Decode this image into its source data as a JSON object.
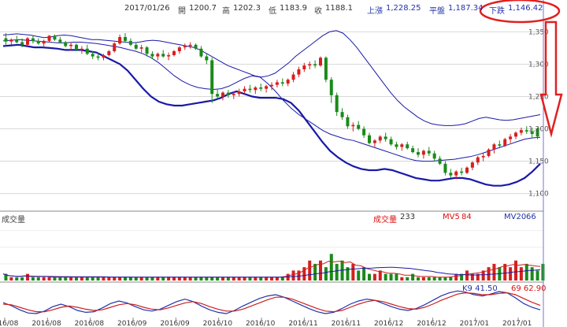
{
  "header": {
    "date": "2017/01/26",
    "open_label": "開",
    "open_value": "1200.7",
    "high_label": "高",
    "high_value": "1202.3",
    "low_label": "低",
    "low_value": "1183.9",
    "close_label": "收",
    "close_value": "1188.1",
    "upper_label": "上漲",
    "upper_value": "1,228.25",
    "mid_label": "平盤",
    "mid_value": "1,187.34",
    "lower_label": "下跌",
    "lower_value": "1,146.42"
  },
  "volume_header": {
    "panel_label": "成交量",
    "volume_label": "成交量",
    "volume_value": "233",
    "mv5_label": "MV5",
    "mv5_value": "84",
    "mv20_label": "MV20",
    "mv20_value": "66"
  },
  "kd_labels": {
    "k": "K9 41.50",
    "d": "69 62.90"
  },
  "colors": {
    "up": "#d42020",
    "down": "#1a8a1a",
    "band": "#1a1aa8",
    "mv5": "#cc2020",
    "mv20": "#1a1aa8",
    "grid": "#d8d8d8",
    "annotation": "#e02020"
  },
  "chart_data": {
    "type": "candlestick",
    "y_ticks": [
      "1,350",
      "1,300",
      "1,250",
      "1,200",
      "1,150",
      "1,100"
    ],
    "ylim": [
      1080,
      1370
    ],
    "x_ticks": [
      "2016/08",
      "2016/08",
      "2016/08",
      "2016/09",
      "2016/09",
      "2016/10",
      "2016/10",
      "2016/11",
      "2016/11",
      "2016/12",
      "2016/12",
      "2017/01",
      "2017/01"
    ],
    "candles": [
      [
        1340,
        1348,
        1328,
        1335
      ],
      [
        1335,
        1340,
        1330,
        1338
      ],
      [
        1338,
        1344,
        1332,
        1334
      ],
      [
        1334,
        1340,
        1326,
        1330
      ],
      [
        1330,
        1342,
        1328,
        1340
      ],
      [
        1340,
        1344,
        1332,
        1336
      ],
      [
        1336,
        1340,
        1330,
        1332
      ],
      [
        1332,
        1338,
        1326,
        1336
      ],
      [
        1336,
        1345,
        1334,
        1344
      ],
      [
        1344,
        1346,
        1336,
        1338
      ],
      [
        1338,
        1342,
        1332,
        1334
      ],
      [
        1334,
        1336,
        1326,
        1328
      ],
      [
        1328,
        1334,
        1322,
        1330
      ],
      [
        1330,
        1332,
        1320,
        1322
      ],
      [
        1322,
        1328,
        1316,
        1324
      ],
      [
        1324,
        1330,
        1314,
        1316
      ],
      [
        1316,
        1320,
        1308,
        1312
      ],
      [
        1312,
        1318,
        1306,
        1310
      ],
      [
        1310,
        1316,
        1306,
        1314
      ],
      [
        1314,
        1322,
        1312,
        1320
      ],
      [
        1320,
        1334,
        1318,
        1332
      ],
      [
        1332,
        1346,
        1330,
        1342
      ],
      [
        1342,
        1348,
        1334,
        1336
      ],
      [
        1336,
        1340,
        1328,
        1330
      ],
      [
        1330,
        1334,
        1322,
        1324
      ],
      [
        1324,
        1330,
        1318,
        1326
      ],
      [
        1326,
        1328,
        1312,
        1316
      ],
      [
        1316,
        1320,
        1308,
        1312
      ],
      [
        1312,
        1318,
        1306,
        1316
      ],
      [
        1316,
        1322,
        1310,
        1312
      ],
      [
        1312,
        1318,
        1306,
        1314
      ],
      [
        1314,
        1322,
        1312,
        1320
      ],
      [
        1320,
        1328,
        1316,
        1326
      ],
      [
        1326,
        1332,
        1322,
        1328
      ],
      [
        1328,
        1334,
        1324,
        1330
      ],
      [
        1330,
        1332,
        1322,
        1324
      ],
      [
        1324,
        1328,
        1310,
        1312
      ],
      [
        1312,
        1316,
        1300,
        1306
      ],
      [
        1306,
        1310,
        1240,
        1254
      ],
      [
        1254,
        1262,
        1246,
        1250
      ],
      [
        1250,
        1258,
        1244,
        1256
      ],
      [
        1256,
        1260,
        1248,
        1252
      ],
      [
        1252,
        1258,
        1246,
        1254
      ],
      [
        1254,
        1262,
        1250,
        1258
      ],
      [
        1258,
        1266,
        1254,
        1262
      ],
      [
        1262,
        1268,
        1256,
        1260
      ],
      [
        1260,
        1266,
        1254,
        1264
      ],
      [
        1264,
        1270,
        1258,
        1262
      ],
      [
        1262,
        1268,
        1256,
        1266
      ],
      [
        1266,
        1272,
        1260,
        1268
      ],
      [
        1268,
        1276,
        1264,
        1272
      ],
      [
        1272,
        1278,
        1266,
        1270
      ],
      [
        1270,
        1278,
        1266,
        1276
      ],
      [
        1276,
        1288,
        1272,
        1284
      ],
      [
        1284,
        1296,
        1280,
        1292
      ],
      [
        1292,
        1302,
        1288,
        1298
      ],
      [
        1298,
        1304,
        1292,
        1300
      ],
      [
        1300,
        1306,
        1294,
        1298
      ],
      [
        1298,
        1312,
        1296,
        1310
      ],
      [
        1310,
        1312,
        1272,
        1276
      ],
      [
        1276,
        1280,
        1240,
        1252
      ],
      [
        1252,
        1256,
        1220,
        1226
      ],
      [
        1226,
        1232,
        1214,
        1218
      ],
      [
        1218,
        1222,
        1200,
        1204
      ],
      [
        1204,
        1210,
        1196,
        1206
      ],
      [
        1206,
        1212,
        1198,
        1200
      ],
      [
        1200,
        1204,
        1186,
        1190
      ],
      [
        1190,
        1194,
        1176,
        1178
      ],
      [
        1178,
        1184,
        1172,
        1182
      ],
      [
        1182,
        1190,
        1178,
        1188
      ],
      [
        1188,
        1194,
        1180,
        1184
      ],
      [
        1184,
        1188,
        1174,
        1176
      ],
      [
        1176,
        1180,
        1168,
        1172
      ],
      [
        1172,
        1178,
        1166,
        1176
      ],
      [
        1176,
        1180,
        1168,
        1170
      ],
      [
        1170,
        1174,
        1162,
        1164
      ],
      [
        1164,
        1170,
        1156,
        1160
      ],
      [
        1160,
        1168,
        1154,
        1166
      ],
      [
        1166,
        1172,
        1158,
        1162
      ],
      [
        1162,
        1166,
        1150,
        1154
      ],
      [
        1154,
        1158,
        1144,
        1146
      ],
      [
        1146,
        1150,
        1128,
        1132
      ],
      [
        1132,
        1138,
        1124,
        1128
      ],
      [
        1128,
        1136,
        1122,
        1134
      ],
      [
        1134,
        1140,
        1128,
        1132
      ],
      [
        1132,
        1142,
        1130,
        1140
      ],
      [
        1140,
        1150,
        1136,
        1148
      ],
      [
        1148,
        1158,
        1144,
        1156
      ],
      [
        1156,
        1162,
        1150,
        1158
      ],
      [
        1158,
        1170,
        1156,
        1168
      ],
      [
        1168,
        1178,
        1162,
        1176
      ],
      [
        1176,
        1182,
        1170,
        1174
      ],
      [
        1174,
        1186,
        1172,
        1184
      ],
      [
        1184,
        1192,
        1178,
        1188
      ],
      [
        1188,
        1196,
        1184,
        1194
      ],
      [
        1194,
        1202,
        1190,
        1198
      ],
      [
        1198,
        1204,
        1192,
        1196
      ],
      [
        1196,
        1202,
        1186,
        1192
      ],
      [
        1200.7,
        1202.3,
        1183.9,
        1188.1
      ]
    ],
    "upper_band": [
      1345,
      1346,
      1347,
      1346,
      1345,
      1343,
      1341,
      1342,
      1344,
      1345,
      1344,
      1342,
      1340,
      1338,
      1338,
      1337,
      1336,
      1335,
      1334,
      1333,
      1334,
      1336,
      1337,
      1336,
      1334,
      1332,
      1330,
      1328,
      1326,
      1322,
      1316,
      1310,
      1304,
      1298,
      1294,
      1290,
      1286,
      1282,
      1280,
      1282,
      1286,
      1294,
      1302,
      1312,
      1320,
      1328,
      1336,
      1344,
      1350,
      1352,
      1348,
      1338,
      1326,
      1312,
      1298,
      1284,
      1270,
      1256,
      1244,
      1234,
      1226,
      1218,
      1212,
      1208,
      1206,
      1205,
      1205,
      1206,
      1208,
      1212,
      1216,
      1218,
      1216,
      1214,
      1213,
      1214,
      1216,
      1218,
      1220,
      1222
    ],
    "mid_band": [
      1336,
      1337,
      1338,
      1337,
      1336,
      1335,
      1334,
      1333,
      1333,
      1334,
      1334,
      1333,
      1332,
      1330,
      1328,
      1326,
      1323,
      1320,
      1316,
      1310,
      1302,
      1292,
      1282,
      1274,
      1268,
      1264,
      1262,
      1261,
      1262,
      1266,
      1272,
      1278,
      1282,
      1280,
      1270,
      1258,
      1244,
      1232,
      1222,
      1214,
      1206,
      1198,
      1192,
      1188,
      1184,
      1182,
      1178,
      1174,
      1170,
      1166,
      1162,
      1158,
      1154,
      1151,
      1150,
      1150,
      1151,
      1152,
      1153,
      1155,
      1157,
      1160,
      1164,
      1168,
      1172,
      1176,
      1180,
      1184,
      1186,
      1187
    ],
    "lower_band": [
      1328,
      1329,
      1330,
      1328,
      1326,
      1326,
      1325,
      1324,
      1322,
      1322,
      1322,
      1320,
      1318,
      1312,
      1306,
      1300,
      1290,
      1276,
      1262,
      1250,
      1242,
      1238,
      1236,
      1236,
      1238,
      1240,
      1242,
      1244,
      1248,
      1254,
      1258,
      1254,
      1250,
      1248,
      1248,
      1248,
      1246,
      1240,
      1228,
      1212,
      1196,
      1180,
      1166,
      1156,
      1148,
      1142,
      1138,
      1136,
      1136,
      1138,
      1136,
      1132,
      1128,
      1124,
      1122,
      1120,
      1120,
      1122,
      1124,
      1124,
      1122,
      1118,
      1114,
      1112,
      1112,
      1114,
      1118,
      1124,
      1134,
      1146
    ],
    "volume": [
      2,
      1,
      1,
      1,
      2,
      1,
      1,
      1,
      1,
      1,
      1,
      1,
      1,
      1,
      1,
      1,
      1,
      1,
      1,
      1,
      1,
      1,
      1,
      1,
      1,
      1,
      1,
      1,
      1,
      1,
      1,
      1,
      1,
      1,
      1,
      1,
      1,
      1,
      1,
      1,
      1,
      1,
      1,
      1,
      1,
      1,
      1,
      1,
      1,
      1,
      1,
      1,
      2,
      3,
      3,
      4,
      6,
      5,
      6,
      4,
      8,
      5,
      6,
      4,
      5,
      3,
      4,
      2,
      2,
      3,
      2,
      2,
      2,
      1,
      1,
      2,
      1,
      1,
      1,
      1,
      1,
      1,
      1,
      2,
      2,
      3,
      2,
      2,
      3,
      4,
      5,
      4,
      5,
      4,
      6,
      4,
      5,
      4,
      3,
      5
    ],
    "volume_ylim": [
      0,
      18
    ],
    "kd_k": [
      0.45,
      0.35,
      0.22,
      0.12,
      0.1,
      0.18,
      0.32,
      0.4,
      0.32,
      0.2,
      0.14,
      0.16,
      0.28,
      0.42,
      0.5,
      0.44,
      0.32,
      0.22,
      0.18,
      0.24,
      0.36,
      0.48,
      0.56,
      0.48,
      0.34,
      0.22,
      0.14,
      0.1,
      0.2,
      0.34,
      0.46,
      0.58,
      0.66,
      0.7,
      0.62,
      0.5,
      0.38,
      0.26,
      0.16,
      0.1,
      0.14,
      0.26,
      0.4,
      0.5,
      0.56,
      0.52,
      0.42,
      0.32,
      0.24,
      0.2,
      0.26,
      0.38,
      0.52,
      0.66,
      0.76,
      0.82,
      0.78,
      0.7,
      0.66,
      0.72,
      0.8,
      0.76,
      0.6,
      0.42,
      0.3,
      0.22
    ],
    "kd_d": [
      0.4,
      0.38,
      0.3,
      0.22,
      0.16,
      0.16,
      0.22,
      0.3,
      0.34,
      0.3,
      0.24,
      0.2,
      0.22,
      0.3,
      0.38,
      0.42,
      0.38,
      0.3,
      0.24,
      0.22,
      0.28,
      0.36,
      0.44,
      0.48,
      0.42,
      0.32,
      0.24,
      0.18,
      0.18,
      0.24,
      0.34,
      0.44,
      0.54,
      0.62,
      0.62,
      0.56,
      0.46,
      0.36,
      0.26,
      0.18,
      0.16,
      0.2,
      0.3,
      0.4,
      0.48,
      0.52,
      0.48,
      0.4,
      0.32,
      0.26,
      0.24,
      0.3,
      0.4,
      0.52,
      0.62,
      0.72,
      0.76,
      0.74,
      0.7,
      0.7,
      0.74,
      0.76,
      0.7,
      0.58,
      0.46,
      0.36
    ]
  }
}
